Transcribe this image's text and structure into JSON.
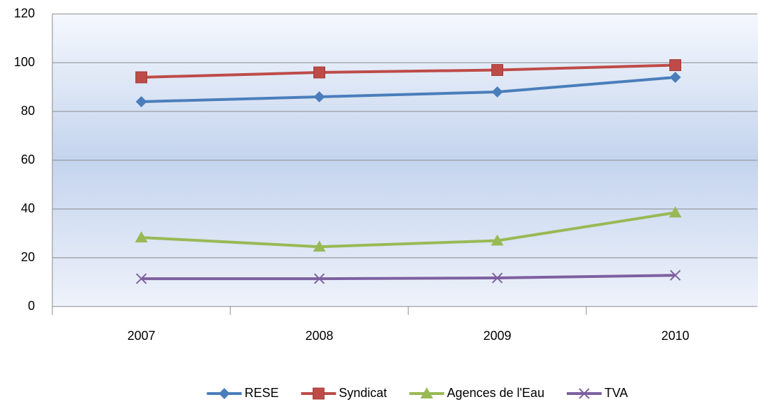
{
  "chart_data": {
    "type": "line",
    "categories": [
      "2007",
      "2008",
      "2009",
      "2010"
    ],
    "series": [
      {
        "name": "RESE",
        "color": "#4a7ebb",
        "marker": "diamond",
        "values": [
          84,
          86,
          88,
          94
        ]
      },
      {
        "name": "Syndicat",
        "color": "#be4b48",
        "marker": "square",
        "values": [
          94,
          96,
          97,
          99
        ]
      },
      {
        "name": "Agences de l'Eau",
        "color": "#98b954",
        "marker": "triangle",
        "values": [
          28.3,
          24.5,
          27,
          38.5
        ]
      },
      {
        "name": "TVA",
        "color": "#7d60a0",
        "marker": "x",
        "values": [
          11.4,
          11.4,
          11.7,
          12.8
        ]
      }
    ],
    "ylim": [
      0,
      120
    ],
    "yticks": [
      0,
      20,
      40,
      60,
      80,
      100,
      120
    ],
    "grid": true,
    "legend": "bottom"
  }
}
